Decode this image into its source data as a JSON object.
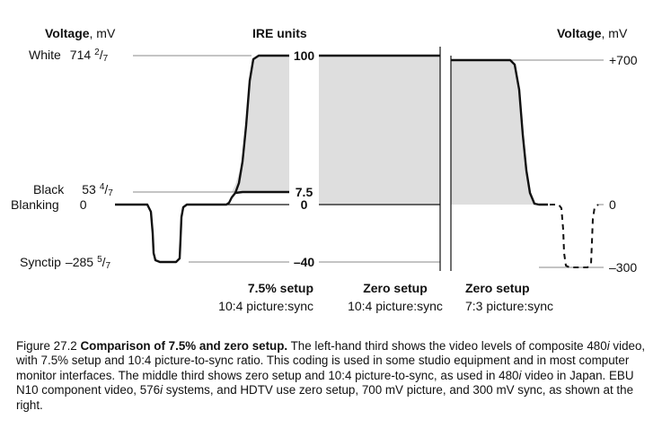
{
  "figure": {
    "left_axis": {
      "title_bold": "Voltage",
      "title_unit": ", mV"
    },
    "center_axis": {
      "title": "IRE units"
    },
    "right_axis": {
      "title_bold": "Voltage",
      "title_unit": ", mV"
    },
    "left_labels": [
      {
        "name": "White",
        "int": "714",
        "num": "2",
        "den": "7"
      },
      {
        "name": "Black",
        "int": "53",
        "num": "4",
        "den": "7"
      },
      {
        "name": "Blanking",
        "int": "0"
      },
      {
        "name": "Synctip",
        "int": "–285",
        "num": "5",
        "den": "7"
      }
    ],
    "ire_labels": [
      "100",
      "7.5",
      "0",
      "–40"
    ],
    "right_labels": [
      "+700",
      "0",
      "–300"
    ],
    "sections": [
      {
        "setup": "7.5% setup",
        "ratio": "10:4 picture:sync"
      },
      {
        "setup": "Zero setup",
        "ratio": "10:4 picture:sync"
      },
      {
        "setup": "Zero setup",
        "ratio": "7:3 picture:sync"
      }
    ],
    "fill_color": "#dedede",
    "line_color": "#111111"
  },
  "caption": {
    "prefix": "Figure 27.2 ",
    "title": "Comparison of 7.5% and zero setup.",
    "t1": " The left-hand third shows the video levels of composite 480",
    "i1": "i",
    "t2": " video, with 7.5% setup and 10:4 picture-to-sync ratio. This coding is used in some studio equipment and in most computer monitor interfaces. The middle third shows zero setup and 10:4 picture-to-sync, as used in 480",
    "i2": "i",
    "t3": " video in Japan. EBU N10 component video, 576",
    "i3": "i",
    "t4": " systems, and HDTV use zero setup, 700 mV picture, and 300 mV sync, as shown at the right."
  }
}
